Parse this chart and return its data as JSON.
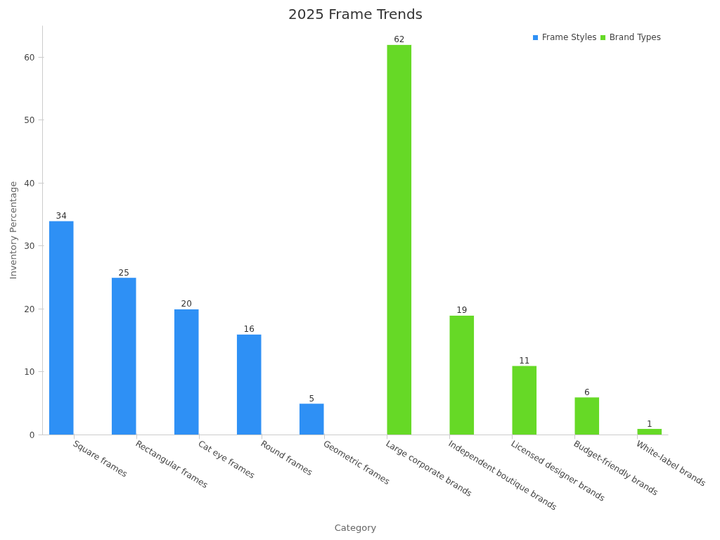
{
  "chart_data": {
    "type": "bar",
    "title": "2025 Frame Trends",
    "xlabel": "Category",
    "ylabel": "Inventory Percentage",
    "categories": [
      "Square frames",
      "Rectangular frames",
      "Cat eye frames",
      "Round frames",
      "Geometric frames",
      "Large corporate brands",
      "Independent boutique brands",
      "Licensed designer brands",
      "Budget-friendly brands",
      "White-label brands"
    ],
    "series": [
      {
        "name": "Frame Styles",
        "color": "#2e90f5",
        "values": [
          34,
          25,
          20,
          16,
          5,
          null,
          null,
          null,
          null,
          null
        ]
      },
      {
        "name": "Brand Types",
        "color": "#66d926",
        "values": [
          null,
          null,
          null,
          null,
          null,
          62,
          19,
          11,
          6,
          1
        ]
      }
    ],
    "ylim": [
      0,
      65
    ],
    "yticks": [
      0,
      10,
      20,
      30,
      40,
      50,
      60
    ],
    "grid": false,
    "legend": "top right",
    "data_labels": true
  }
}
